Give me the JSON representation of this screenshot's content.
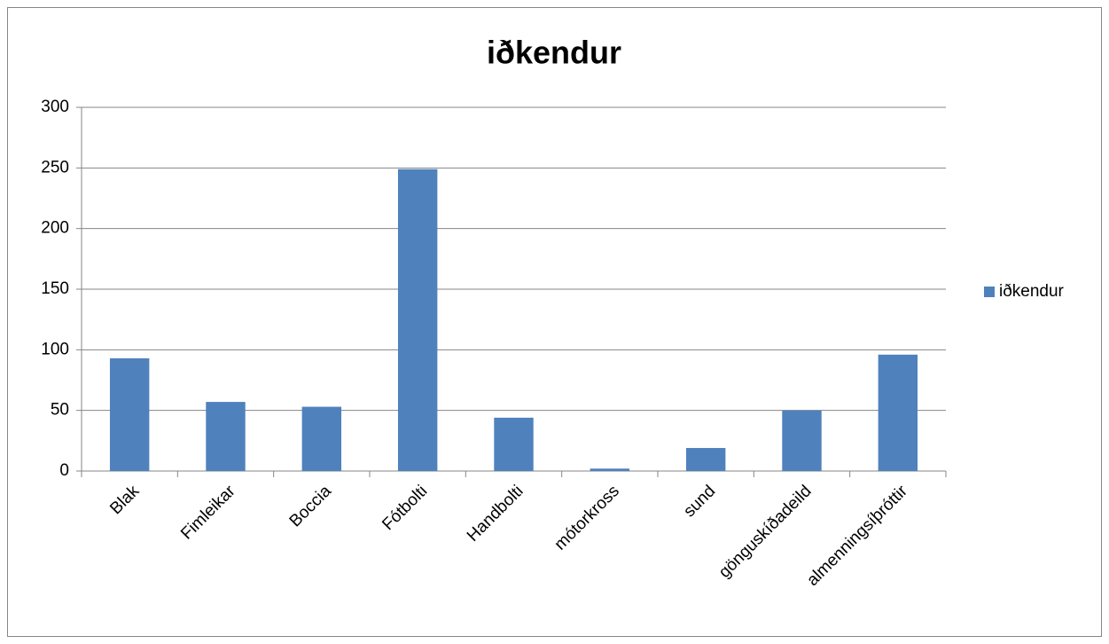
{
  "chart_data": {
    "type": "bar",
    "title": "iðkendur",
    "categories": [
      "Blak",
      "Fimleikar",
      "Boccia",
      "Fótbolti",
      "Handbolti",
      "mótorkross",
      "sund",
      "gönguskíðadeild",
      "almenningsíþróttir"
    ],
    "series": [
      {
        "name": "iðkendur",
        "color": "#4f81bd",
        "values": [
          93,
          57,
          53,
          249,
          44,
          2,
          19,
          50,
          96
        ]
      }
    ],
    "ylim": [
      0,
      300
    ],
    "yticks": [
      0,
      50,
      100,
      150,
      200,
      250,
      300
    ],
    "grid": true,
    "legend": "right"
  }
}
